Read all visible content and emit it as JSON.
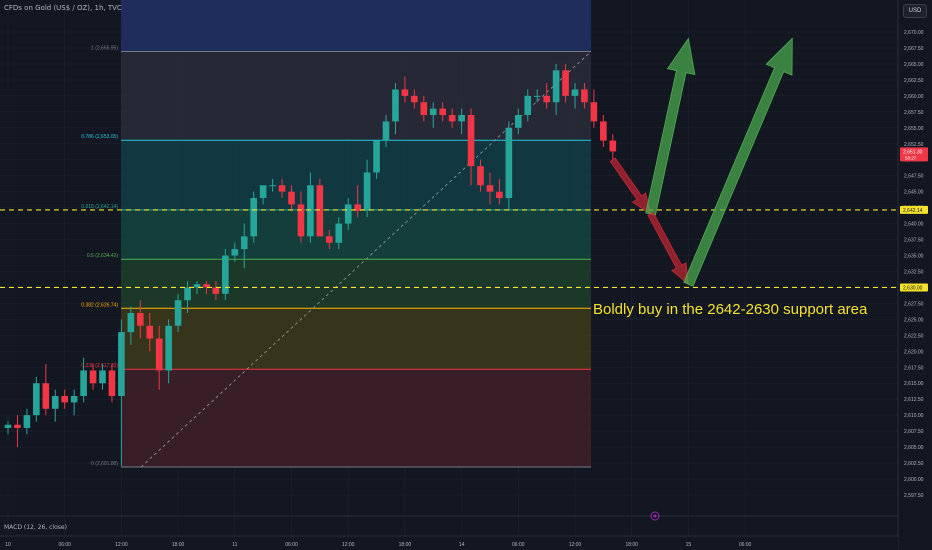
{
  "header": {
    "symbol_title": "CFDs on Gold (US$ / OZ), 1h, TVC",
    "currency": "USD"
  },
  "indicator": {
    "label": "MACD (12, 26, close)"
  },
  "annotation": {
    "text": "Boldly buy in the 2642-2630 support area"
  },
  "colors": {
    "background": "#131722",
    "up_candle": "#26a69a",
    "down_candle": "#f23645",
    "grid": "#1f2330",
    "support_line": "#f5e22a",
    "arrow_green": "#4caf50",
    "arrow_red": "#c62834"
  },
  "chart_data": {
    "type": "candlestick",
    "y_axis": {
      "range": [
        2596.5,
        2673.5
      ],
      "ticks": [
        "2,597.50",
        "2,600.00",
        "2,602.50",
        "2,605.00",
        "2,607.50",
        "2,610.00",
        "2,612.50",
        "2,615.00",
        "2,617.50",
        "2,620.00",
        "2,622.50",
        "2,625.00",
        "2,627.50",
        "2,630.00",
        "2,632.50",
        "2,635.00",
        "2,637.50",
        "2,640.00",
        "2,642.50",
        "2,645.00",
        "2,647.50",
        "2,650.00",
        "2,652.50",
        "2,655.00",
        "2,657.50",
        "2,660.00",
        "2,662.50",
        "2,665.00",
        "2,667.50",
        "2,670.00"
      ],
      "tick_values": [
        2597.5,
        2600,
        2602.5,
        2605,
        2607.5,
        2610,
        2612.5,
        2615,
        2617.5,
        2620,
        2622.5,
        2625,
        2627.5,
        2630,
        2632.5,
        2635,
        2637.5,
        2640,
        2642.5,
        2645,
        2647.5,
        2650,
        2652.5,
        2655,
        2657.5,
        2660,
        2662.5,
        2665,
        2667.5,
        2670
      ],
      "price_labels": [
        {
          "text": "2,651.30",
          "sub": "58:27",
          "value": 2651.3
        },
        {
          "text": "2,642.14",
          "value": 2642.14
        },
        {
          "text": "2,630.00",
          "value": 2630.0
        }
      ]
    },
    "x_axis": {
      "ticks": [
        "10",
        "06:00",
        "12:00",
        "18:00",
        "11",
        "06:00",
        "12:00",
        "18:00",
        "14",
        "06:00",
        "12:00",
        "18:00",
        "15",
        "06:00"
      ],
      "tick_bars": [
        0,
        6,
        12,
        18,
        24,
        30,
        36,
        42,
        48,
        54,
        60,
        66,
        72,
        78
      ]
    },
    "candles": [
      [
        2608,
        2609,
        2607,
        2608.5
      ],
      [
        2608.5,
        2610,
        2605,
        2608
      ],
      [
        2608,
        2611,
        2607,
        2610
      ],
      [
        2610,
        2616,
        2609,
        2615
      ],
      [
        2615,
        2618,
        2610,
        2611
      ],
      [
        2611,
        2614,
        2609,
        2613
      ],
      [
        2613,
        2614,
        2611,
        2612
      ],
      [
        2612,
        2614,
        2610,
        2613
      ],
      [
        2613,
        2619,
        2612,
        2617
      ],
      [
        2617,
        2618,
        2614,
        2615
      ],
      [
        2615,
        2618,
        2614,
        2617
      ],
      [
        2617,
        2618,
        2612,
        2613
      ],
      [
        2613,
        2625,
        2602,
        2623
      ],
      [
        2623,
        2627,
        2621,
        2626
      ],
      [
        2626,
        2628,
        2622,
        2624
      ],
      [
        2624,
        2626,
        2620,
        2622
      ],
      [
        2622,
        2624,
        2614,
        2617
      ],
      [
        2617,
        2625,
        2615,
        2624
      ],
      [
        2624,
        2629,
        2623,
        2628
      ],
      [
        2628,
        2631,
        2626,
        2630
      ],
      [
        2630,
        2631,
        2629,
        2630.5
      ],
      [
        2630.5,
        2631,
        2629,
        2630
      ],
      [
        2630,
        2631,
        2628,
        2629
      ],
      [
        2629,
        2636,
        2628,
        2635
      ],
      [
        2635,
        2637,
        2634,
        2636
      ],
      [
        2636,
        2640,
        2633,
        2638
      ],
      [
        2638,
        2645,
        2637,
        2644
      ],
      [
        2644,
        2646,
        2643,
        2646
      ],
      [
        2646,
        2647,
        2645,
        2646
      ],
      [
        2646,
        2647,
        2644,
        2645
      ],
      [
        2645,
        2646,
        2642,
        2643
      ],
      [
        2643,
        2645,
        2637,
        2638
      ],
      [
        2638,
        2648,
        2637,
        2646
      ],
      [
        2646,
        2647,
        2638,
        2638
      ],
      [
        2638,
        2639,
        2636,
        2637
      ],
      [
        2637,
        2641,
        2636,
        2640
      ],
      [
        2640,
        2644,
        2639,
        2643
      ],
      [
        2643,
        2646,
        2641,
        2642
      ],
      [
        2642,
        2650,
        2641,
        2648
      ],
      [
        2648,
        2653,
        2647,
        2653
      ],
      [
        2653,
        2657,
        2652,
        2656
      ],
      [
        2656,
        2662,
        2654,
        2661
      ],
      [
        2661,
        2663,
        2659,
        2660
      ],
      [
        2660,
        2661,
        2658,
        2659
      ],
      [
        2659,
        2660,
        2656,
        2657
      ],
      [
        2657,
        2659,
        2655,
        2658
      ],
      [
        2658,
        2659,
        2656,
        2657
      ],
      [
        2657,
        2658,
        2655,
        2656
      ],
      [
        2656,
        2658,
        2654,
        2657
      ],
      [
        2657,
        2658,
        2646,
        2649
      ],
      [
        2649,
        2650,
        2645,
        2646
      ],
      [
        2646,
        2648,
        2643,
        2645
      ],
      [
        2645,
        2647,
        2643,
        2644
      ],
      [
        2644,
        2656,
        2642,
        2655
      ],
      [
        2655,
        2658,
        2654,
        2657
      ],
      [
        2657,
        2661,
        2656,
        2660
      ],
      [
        2660,
        2661,
        2659,
        2660
      ],
      [
        2660,
        2662,
        2658,
        2659
      ],
      [
        2659,
        2665,
        2657,
        2664
      ],
      [
        2664,
        2665,
        2659,
        2660
      ],
      [
        2660,
        2662,
        2658,
        2661
      ],
      [
        2661,
        2662,
        2658,
        2659
      ],
      [
        2659,
        2661,
        2655,
        2656
      ],
      [
        2656,
        2657,
        2652,
        2653
      ],
      [
        2653,
        2654,
        2650,
        2651.3
      ]
    ],
    "fibonacci": [
      {
        "level": 1,
        "label": "1 (2,666.95)",
        "price": 2666.95,
        "color": "#787b86",
        "fill": "#2a2d38"
      },
      {
        "level": 0.786,
        "label": "0.786 (2,653.05)",
        "price": 2653.05,
        "color": "#26c6da",
        "fill": "#123e46"
      },
      {
        "level": 0.618,
        "label": "0.618 (2,642.14)",
        "price": 2642.14,
        "color": "#26a69a",
        "fill": "#154540"
      },
      {
        "level": 0.5,
        "label": "0.5 (2,634.42)",
        "price": 2634.42,
        "color": "#4caf50",
        "fill": "#1f3e2a"
      },
      {
        "level": 0.382,
        "label": "0.382 (2,626.74)",
        "price": 2626.74,
        "color": "#ffb300",
        "fill": "#3d3a1a"
      },
      {
        "level": 0.236,
        "label": "0.236 (2,617.20)",
        "price": 2617.2,
        "color": "#f23645",
        "fill": "#3f2028"
      },
      {
        "level": 0,
        "label": "0 (2,601.88)",
        "price": 2601.88,
        "color": "#787b86",
        "fill": "#3f2028"
      }
    ],
    "support_lines": [
      2642.14,
      2630.0
    ],
    "arrows": [
      {
        "type": "down",
        "from": [
          64,
          2650
        ],
        "to": [
          68,
          2641.5
        ]
      },
      {
        "type": "up",
        "from": [
          68,
          2641.5
        ],
        "to": [
          72,
          2669
        ]
      },
      {
        "type": "down",
        "from": [
          68,
          2641.5
        ],
        "to": [
          72,
          2630.5
        ]
      },
      {
        "type": "up",
        "from": [
          72,
          2630.5
        ],
        "to": [
          83,
          2669
        ]
      }
    ]
  }
}
